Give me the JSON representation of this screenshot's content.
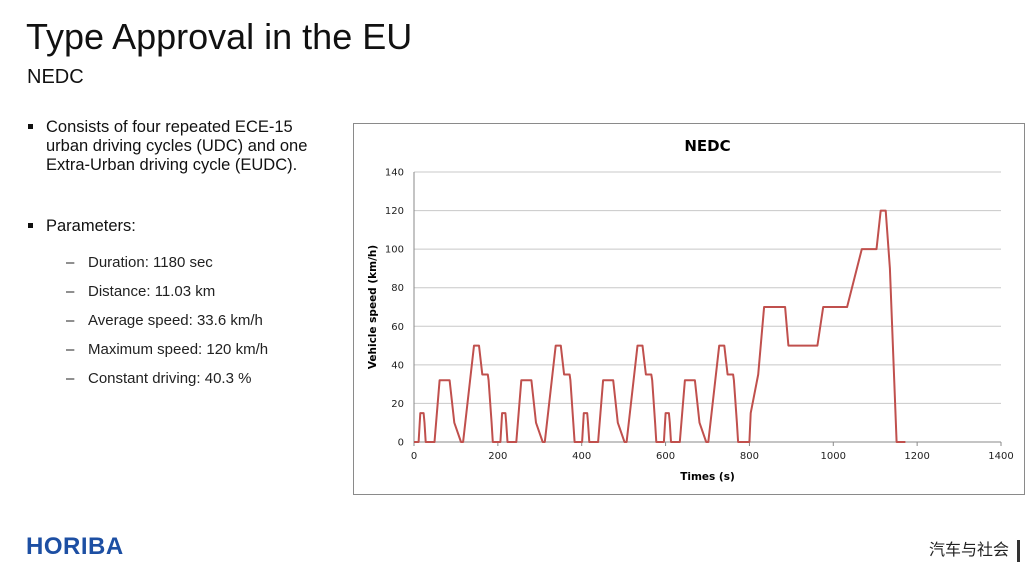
{
  "slide": {
    "title": "Type Approval in the EU",
    "subtitle": "NEDC",
    "bullets": [
      "Consists of four repeated ECE-15 urban driving cycles (UDC) and one Extra-Urban driving cycle (EUDC).",
      "Parameters:"
    ],
    "parameters": [
      "Duration: 1180 sec",
      "Distance: 11.03 km",
      "Average speed: 33.6 km/h",
      "Maximum speed: 120 km/h",
      "Constant driving: 40.3 %"
    ]
  },
  "logo_text": "HORIBA",
  "watermark": "汽车与社会",
  "colors": {
    "line": "#c0504d",
    "logo": "#1d4fa3",
    "grid": "#c8c8c8"
  },
  "chart_data": {
    "type": "line",
    "title": "NEDC",
    "xlabel": "Times (s)",
    "ylabel": "Vehicle speed (km/h)",
    "xlim": [
      0,
      1400
    ],
    "ylim": [
      0,
      140
    ],
    "xticks": [
      0,
      200,
      400,
      600,
      800,
      1000,
      1200,
      1400
    ],
    "yticks": [
      0,
      20,
      40,
      60,
      80,
      100,
      120,
      140
    ],
    "grid": "horizontal",
    "legend": "none",
    "series": [
      {
        "x": [
          0,
          11,
          15,
          23,
          25,
          28,
          49,
          61,
          85,
          96,
          112,
          117,
          143,
          155,
          163,
          176,
          178,
          185,
          188,
          206,
          210,
          218,
          220,
          223,
          244,
          256,
          280,
          291,
          307,
          312,
          338,
          350,
          358,
          371,
          373,
          380,
          383,
          401,
          405,
          413,
          415,
          418,
          439,
          451,
          475,
          486,
          502,
          507,
          533,
          545,
          553,
          566,
          568,
          575,
          578,
          596,
          600,
          608,
          610,
          613,
          634,
          646,
          670,
          681,
          697,
          702,
          728,
          740,
          748,
          761,
          763,
          770,
          773,
          780,
          781,
          800,
          803,
          821,
          835,
          885,
          893,
          962,
          976,
          1026,
          1033,
          1068,
          1103,
          1113,
          1125,
          1135,
          1151,
          1160,
          1172
        ],
        "y": [
          0,
          0,
          15,
          15,
          10,
          0,
          0,
          32,
          32,
          10,
          0,
          0,
          50,
          50,
          35,
          35,
          32,
          10,
          0,
          0,
          15,
          15,
          10,
          0,
          0,
          32,
          32,
          10,
          0,
          0,
          50,
          50,
          35,
          35,
          32,
          10,
          0,
          0,
          15,
          15,
          10,
          0,
          0,
          32,
          32,
          10,
          0,
          0,
          50,
          50,
          35,
          35,
          32,
          10,
          0,
          0,
          15,
          15,
          10,
          0,
          0,
          32,
          32,
          10,
          0,
          0,
          50,
          50,
          35,
          35,
          32,
          10,
          0,
          0,
          0,
          0,
          15,
          35,
          70,
          70,
          50,
          50,
          70,
          70,
          70,
          100,
          100,
          120,
          120,
          90,
          0,
          0,
          0
        ]
      }
    ]
  }
}
